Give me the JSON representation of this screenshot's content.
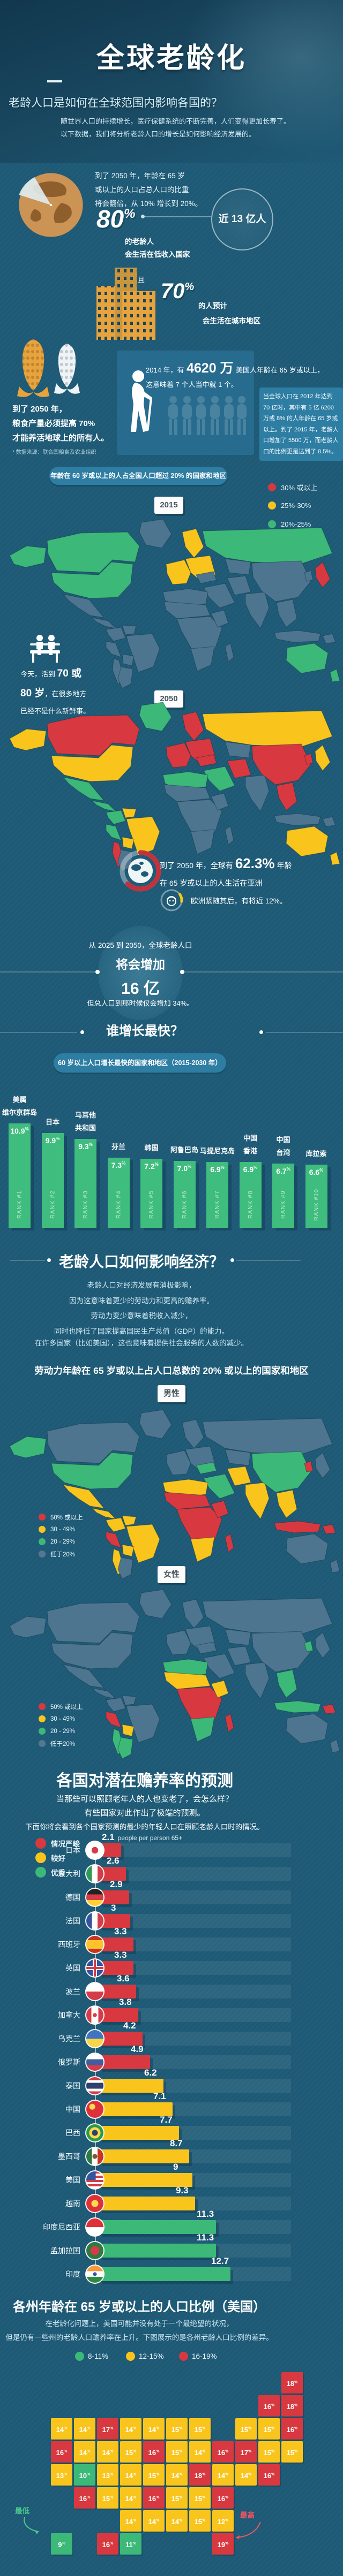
{
  "palette": {
    "G": "#3cb878",
    "Y": "#f9c51d",
    "R": "#d8383f",
    "N": "#4d7590",
    "panel": "#2e7da3",
    "bg": "#1e5a76"
  },
  "header": {
    "title": "全球老龄化",
    "subtitle": "老龄人口是如何在全球范围内影响各国的？",
    "desc1": "随世界人口的持续增长，医疗保健系统的不断完善，人们变得更加长寿了。",
    "desc2": "以下数据，我们将分析老龄人口的增长是如何影响经济发展的。"
  },
  "doubling": {
    "line1": "到了 2050 年，年龄在 65 岁",
    "line2": "或以上的人口占总人口的比重",
    "line3": "将会翻倍，从 10% 增长到 20%。",
    "big": "80",
    "big_pct": "%",
    "sub1": "的老龄人",
    "sub2": "会生活在低收入国家",
    "bubble": "近 13 亿人",
    "and": "而且",
    "big2": "70",
    "big2_pct": "%",
    "sub3": "的人预计",
    "sub4": "会生活在城市地区"
  },
  "food": {
    "line1": "到了 2050 年，",
    "line2": "粮食产量必须提高 70%",
    "line3": "才能养活地球上的所有人。",
    "source": "* 数据来源：联合国粮食及农业组织"
  },
  "us2014": {
    "pre": "2014 年，有",
    "big": "4620 万",
    "post": "美国人年龄在 65 岁或以上，",
    "line2": "这意味着 7 个人当中就 1 个。"
  },
  "panel2012": {
    "text": "当全球人口在 2012 年达到 70 亿时，其中有 5 亿 6200 万或 8% 的人年龄在 65 岁或以上。到了 2015 年，老龄人口增加了 5500 万，而老龄人口的比例更是达到了 8.5%。"
  },
  "banner60": "年龄在 60 岁或以上的人占全国人口超过 20% 的国家和地区",
  "map2015": {
    "tag": "2015",
    "legend": [
      {
        "label": "30% 或以上",
        "color": "#d8383f"
      },
      {
        "label": "25%-30%",
        "color": "#f9c51d"
      },
      {
        "label": "20%-25%",
        "color": "#3cb878"
      },
      {
        "label": "低于 20%",
        "color": "#55778f"
      }
    ]
  },
  "map2050": {
    "tag": "2050"
  },
  "bench": {
    "l1pre": "今天，活到 ",
    "l1big": "70 或",
    "l2big": "80 岁",
    "l2post": "，在很多地方",
    "l3": "已经不是什么新鲜事。"
  },
  "asia": {
    "pre": "到了 2050 年，全球有 ",
    "big": "62.3%",
    "post": " 年龄",
    "line2": "在 65 岁或以上的人生活在亚洲",
    "europe": "欧洲紧随其后，有将近 12%。"
  },
  "growth": {
    "line1": "从 2025 到 2050，全球老龄人口",
    "line2": "将会增加",
    "big": "16 亿",
    "line3": "但总人口到那时候仅会增加 34%。"
  },
  "fastest": {
    "title": "谁增长最快？",
    "banner": "60 岁以上人口增长最快的国家和地区（2015-2030 年）"
  },
  "economy": {
    "title": "老龄人口如何影响经济？",
    "p1": "老龄人口对经济发展有消极影响，",
    "p2": "因为这意味着更少的劳动力和更高的赡养率。",
    "p3": "劳动力变少意味着税收入减少，",
    "p4": "同时也降低了国家提高国民生产总值（GDP）的能力。",
    "p5": "在许多国家（比如美国），这也意味着提供社会服务的人数的减少。",
    "heading": "劳动力年龄在 65 岁或以上占人口总数的 20% 或以上的国家和地区"
  },
  "gender": {
    "male_tag": "男性",
    "female_tag": "女性",
    "legend": [
      {
        "label": "50% 或以上",
        "color": "#d8383f"
      },
      {
        "label": "30 - 49%",
        "color": "#f9c51d"
      },
      {
        "label": "20 - 29%",
        "color": "#3cb878"
      },
      {
        "label": "低于20%",
        "color": "#55778f"
      }
    ]
  },
  "dependency": {
    "title": "各国对潜在赡养率的预测",
    "sub1": "当那些可以照顾老年人的人也变老了，会怎么样？",
    "sub2": "有些国家对此作出了极端的预测。",
    "sub3": "下面你将会看到各个国家预测的最少的年轻人口在照顾老龄人口时的情况。",
    "legend": [
      {
        "label": "情况严峻",
        "color": "#d8383f"
      },
      {
        "label": "较好",
        "color": "#f9c51d"
      },
      {
        "label": "优秀",
        "color": "#3cb878"
      }
    ]
  },
  "usmap": {
    "title": "各州年龄在 65 岁或以上的人口比例（美国）",
    "desc1": "在老龄化问题上，美国可能并没有处于一个最绝望的状况，",
    "desc2": "但是仍有一些州的老龄人口赡养率在上升。下图展示的是各州老龄人口比例的差异。",
    "legend": [
      {
        "label": "8-11%",
        "color": "#3cb878"
      },
      {
        "label": "12-15%",
        "color": "#f9c51d"
      },
      {
        "label": "16-19%",
        "color": "#d8383f"
      }
    ],
    "lowest": "最低",
    "highest": "最高"
  },
  "chart_data": [
    {
      "id": "fastest-growing",
      "type": "bar",
      "title": "60 岁以上人口增长最快的国家和地区（2015-2030 年）",
      "categories": [
        "美属维尔京群岛",
        "日本",
        "马耳他共和国",
        "芬兰",
        "韩国",
        "阿鲁巴岛",
        "马提尼克岛",
        "中国香港",
        "中国台湾",
        "库拉索"
      ],
      "label_lines": [
        [
          "美属",
          "维尔京群岛"
        ],
        [
          "日本"
        ],
        [
          "马耳他",
          "共和国"
        ],
        [
          "芬兰"
        ],
        [
          "韩国"
        ],
        [
          "阿鲁巴岛"
        ],
        [
          "马提尼克岛"
        ],
        [
          "中国",
          "香港"
        ],
        [
          "中国",
          "台湾"
        ],
        [
          "库拉索"
        ]
      ],
      "values": [
        10.9,
        9.9,
        9.3,
        7.3,
        7.2,
        7.0,
        6.9,
        6.9,
        6.7,
        6.6
      ],
      "ranks": [
        "RANK #1",
        "RANK #2",
        "RANK #3",
        "RANK #4",
        "RANK #5",
        "RANK #6",
        "RANK #7",
        "RANK #8",
        "RANK #9",
        "RANK #10"
      ],
      "unit": "%",
      "bar_color": "#3fbd7e",
      "ylim": [
        0,
        10.9
      ]
    },
    {
      "id": "dependency-ratio",
      "type": "bar",
      "orientation": "horizontal",
      "title": "各国对潜在赡养率的预测",
      "unit": "people per person 65+",
      "max_value": 12.7,
      "rows": [
        {
          "country": "日本",
          "flag": "japan",
          "value": 2.1,
          "display": "2.1",
          "level": "R"
        },
        {
          "country": "意大利",
          "flag": "italy",
          "value": 2.6,
          "display": "2.6",
          "level": "R"
        },
        {
          "country": "德国",
          "flag": "germany",
          "value": 2.9,
          "display": "2.9",
          "level": "R"
        },
        {
          "country": "法国",
          "flag": "france",
          "value": 3,
          "display": "3",
          "level": "R"
        },
        {
          "country": "西班牙",
          "flag": "spain",
          "value": 3.3,
          "display": "3.3",
          "level": "R"
        },
        {
          "country": "英国",
          "flag": "uk",
          "value": 3.3,
          "display": "3.3",
          "level": "R"
        },
        {
          "country": "波兰",
          "flag": "poland",
          "value": 3.6,
          "display": "3.6",
          "level": "R"
        },
        {
          "country": "加拿大",
          "flag": "canada",
          "value": 3.8,
          "display": "3.8",
          "level": "R"
        },
        {
          "country": "乌克兰",
          "flag": "ukraine",
          "value": 4.2,
          "display": "4.2",
          "level": "R"
        },
        {
          "country": "俄罗斯",
          "flag": "russia",
          "value": 4.9,
          "display": "4.9",
          "level": "R"
        },
        {
          "country": "泰国",
          "flag": "thailand",
          "value": 6.2,
          "display": "6.2",
          "level": "Y"
        },
        {
          "country": "中国",
          "flag": "china",
          "value": 7.1,
          "display": "7.1",
          "level": "Y"
        },
        {
          "country": "巴西",
          "flag": "brazil",
          "value": 7.7,
          "display": "7.7",
          "level": "Y"
        },
        {
          "country": "墨西哥",
          "flag": "mexico",
          "value": 8.7,
          "display": "8.7",
          "level": "Y"
        },
        {
          "country": "美国",
          "flag": "usa",
          "value": 9,
          "display": "9",
          "level": "Y"
        },
        {
          "country": "越南",
          "flag": "vietnam",
          "value": 9.3,
          "display": "9.3",
          "level": "Y"
        },
        {
          "country": "印度尼西亚",
          "flag": "indonesia",
          "value": 11.3,
          "display": "11.3",
          "level": "G"
        },
        {
          "country": "孟加拉国",
          "flag": "bangladesh",
          "value": 11.3,
          "display": "11.3",
          "level": "G"
        },
        {
          "country": "印度",
          "flag": "india",
          "value": 12.7,
          "display": "12.7",
          "level": "G"
        }
      ]
    },
    {
      "id": "us-states-65plus",
      "type": "heatmap",
      "title": "各州年龄在 65 岁或以上的人口比例（美国）",
      "unit": "%",
      "bins": [
        {
          "label": "8-11%",
          "color": "#3cb878"
        },
        {
          "label": "12-15%",
          "color": "#f9c51d"
        },
        {
          "label": "16-19%",
          "color": "#d8383f"
        }
      ],
      "states": [
        {
          "s": "AK",
          "v": 9
        },
        {
          "s": "HI",
          "v": 16
        },
        {
          "s": "WA",
          "v": 14
        },
        {
          "s": "OR",
          "v": 16
        },
        {
          "s": "CA",
          "v": 13
        },
        {
          "s": "NV",
          "v": 14
        },
        {
          "s": "ID",
          "v": 14
        },
        {
          "s": "UT",
          "v": 10
        },
        {
          "s": "AZ",
          "v": 16
        },
        {
          "s": "MT",
          "v": 17
        },
        {
          "s": "WY",
          "v": 14
        },
        {
          "s": "CO",
          "v": 13
        },
        {
          "s": "NM",
          "v": 15
        },
        {
          "s": "ND",
          "v": 14
        },
        {
          "s": "SD",
          "v": 15
        },
        {
          "s": "NE",
          "v": 14
        },
        {
          "s": "KS",
          "v": 14
        },
        {
          "s": "OK",
          "v": 14
        },
        {
          "s": "TX",
          "v": 11
        },
        {
          "s": "MN",
          "v": 14
        },
        {
          "s": "IA",
          "v": 16
        },
        {
          "s": "MO",
          "v": 15
        },
        {
          "s": "AR",
          "v": 16
        },
        {
          "s": "LA",
          "v": 14
        },
        {
          "s": "WI",
          "v": 15
        },
        {
          "s": "IL",
          "v": 15
        },
        {
          "s": "MS",
          "v": 14
        },
        {
          "s": "MI",
          "v": 15
        },
        {
          "s": "IN",
          "v": 14
        },
        {
          "s": "KY",
          "v": 14
        },
        {
          "s": "TN",
          "v": 15
        },
        {
          "s": "AL",
          "v": 15
        },
        {
          "s": "OH",
          "v": 16
        },
        {
          "s": "GA",
          "v": 12
        },
        {
          "s": "FL",
          "v": 19
        },
        {
          "s": "SC",
          "v": 16
        },
        {
          "s": "NC",
          "v": 15
        },
        {
          "s": "VA",
          "v": 14
        },
        {
          "s": "WV",
          "v": 18
        },
        {
          "s": "PA",
          "v": 17
        },
        {
          "s": "NY",
          "v": 15
        },
        {
          "s": "NJ",
          "v": 15
        },
        {
          "s": "CT",
          "v": 15
        },
        {
          "s": "RI",
          "v": 16
        },
        {
          "s": "MA",
          "v": 15
        },
        {
          "s": "VT",
          "v": 16
        },
        {
          "s": "NH",
          "v": 18
        },
        {
          "s": "ME",
          "v": 18
        },
        {
          "s": "MD",
          "v": 14
        },
        {
          "s": "DE",
          "v": 16
        }
      ]
    },
    {
      "id": "world-2015",
      "type": "heatmap",
      "legend": [
        "30% 或以上",
        "25%-30%",
        "20%-25%",
        "低于 20%"
      ],
      "regions": {
        "alaska": "G",
        "canada": "G",
        "usa": "G",
        "greenland": "N",
        "mexico": "N",
        "camerica": "N",
        "colombia": "N",
        "venezuela": "N",
        "brazil": "N",
        "peru": "N",
        "bolivia": "N",
        "chile": "N",
        "argentina": "N",
        "weurope": "Y",
        "easteurope": "Y",
        "scandinavia": "Y",
        "russia": "G",
        "centralasia": "N",
        "turkey": "N",
        "mideast": "N",
        "iran": "N",
        "india": "N",
        "china": "N",
        "sea": "N",
        "indonesia": "N",
        "png": "N",
        "japan": "R",
        "korea": "N",
        "australia": "G",
        "nz": "G",
        "nafrica": "N",
        "sahel": "N",
        "cafrica": "N",
        "safrica": "N",
        "hornafrica": "N",
        "madagascar": "N"
      }
    },
    {
      "id": "world-2050",
      "type": "heatmap",
      "regions": {
        "alaska": "Y",
        "canada": "R",
        "usa": "Y",
        "greenland": "G",
        "mexico": "G",
        "camerica": "G",
        "colombia": "G",
        "venezuela": "Y",
        "brazil": "Y",
        "peru": "G",
        "bolivia": "Y",
        "chile": "R",
        "argentina": "N",
        "weurope": "R",
        "easteurope": "R",
        "scandinavia": "R",
        "russia": "Y",
        "centralasia": "N",
        "turkey": "R",
        "mideast": "G",
        "iran": "R",
        "india": "N",
        "china": "R",
        "sea": "R",
        "indonesia": "N",
        "png": "N",
        "japan": "Y",
        "korea": "R",
        "australia": "Y",
        "nz": "Y",
        "nafrica": "G",
        "sahel": "N",
        "cafrica": "N",
        "safrica": "N",
        "hornafrica": "N",
        "madagascar": "N"
      }
    },
    {
      "id": "world-male",
      "type": "heatmap",
      "legend": [
        "50% 或以上",
        "30 - 49%",
        "20 - 29%",
        "低于20%"
      ],
      "regions": {
        "alaska": "G",
        "canada": "N",
        "usa": "G",
        "greenland": "N",
        "mexico": "Y",
        "camerica": "Y",
        "colombia": "Y",
        "venezuela": "Y",
        "brazil": "Y",
        "peru": "R",
        "bolivia": "Y",
        "chile": "Y",
        "argentina": "N",
        "weurope": "N",
        "easteurope": "N",
        "scandinavia": "N",
        "russia": "N",
        "centralasia": "N",
        "turkey": "G",
        "mideast": "G",
        "iran": "Y",
        "india": "Y",
        "china": "G",
        "sea": "Y",
        "indonesia": "R",
        "png": "R",
        "japan": "N",
        "korea": "R",
        "australia": "N",
        "nz": "N",
        "nafrica": "Y",
        "sahel": "R",
        "cafrica": "R",
        "safrica": "Y",
        "hornafrica": "R",
        "madagascar": "R"
      }
    },
    {
      "id": "world-female",
      "type": "heatmap",
      "regions": {
        "alaska": "N",
        "canada": "N",
        "usa": "N",
        "greenland": "N",
        "mexico": "N",
        "camerica": "N",
        "colombia": "N",
        "venezuela": "N",
        "brazil": "N",
        "peru": "R",
        "bolivia": "Y",
        "chile": "G",
        "argentina": "G",
        "weurope": "N",
        "easteurope": "N",
        "scandinavia": "N",
        "russia": "N",
        "centralasia": "N",
        "turkey": "N",
        "mideast": "N",
        "iran": "N",
        "india": "N",
        "china": "N",
        "sea": "G",
        "indonesia": "G",
        "png": "R",
        "japan": "N",
        "korea": "G",
        "australia": "N",
        "nz": "N",
        "nafrica": "G",
        "sahel": "Y",
        "cafrica": "R",
        "safrica": "G",
        "hornafrica": "Y",
        "madagascar": "R"
      }
    }
  ]
}
